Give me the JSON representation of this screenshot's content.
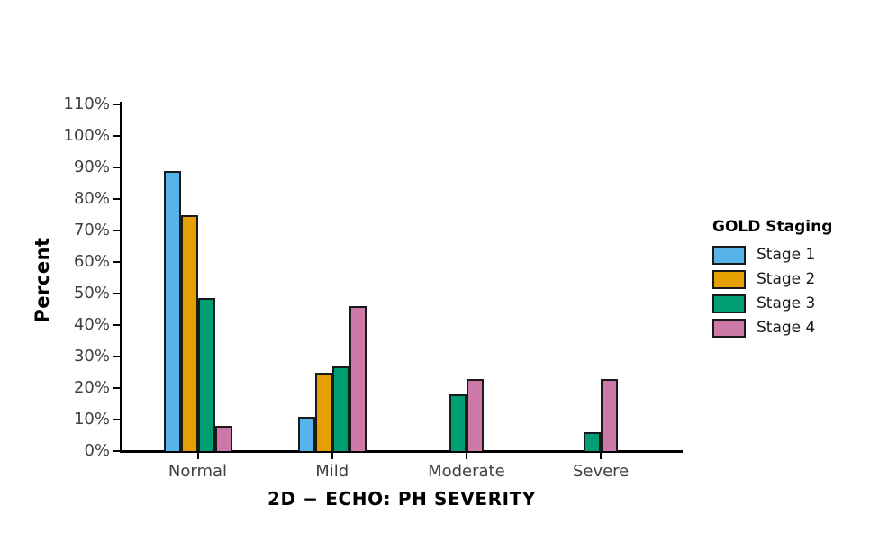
{
  "page": {
    "background_color": "#ffffff"
  },
  "chart_data": {
    "type": "bar",
    "title": "",
    "xlabel": "2D − ECHO: PH SEVERITY",
    "ylabel": "Percent",
    "categories": [
      "Normal",
      "Mild",
      "Moderate",
      "Severe"
    ],
    "series": [
      {
        "name": "Stage 1",
        "color": "#56B4E9",
        "values": [
          89,
          11,
          0,
          0
        ]
      },
      {
        "name": "Stage 2",
        "color": "#E69F00",
        "values": [
          75,
          25,
          0,
          0
        ]
      },
      {
        "name": "Stage 3",
        "color": "#009E73",
        "values": [
          48.5,
          27,
          18,
          6
        ]
      },
      {
        "name": "Stage 4",
        "color": "#CC79A7",
        "values": [
          8,
          46,
          23,
          23
        ]
      }
    ],
    "ylim": [
      0,
      110
    ],
    "ytick_step": 10,
    "ytick_suffix": "%",
    "grid": false,
    "legend": {
      "title": "GOLD Staging",
      "position": "right-middle",
      "entries": [
        "Stage 1",
        "Stage 2",
        "Stage 3",
        "Stage 4"
      ]
    },
    "bar_outline_color": "#1a1a1a",
    "axis_color": "#000000",
    "tick_label_color": "#3f3f3f"
  }
}
